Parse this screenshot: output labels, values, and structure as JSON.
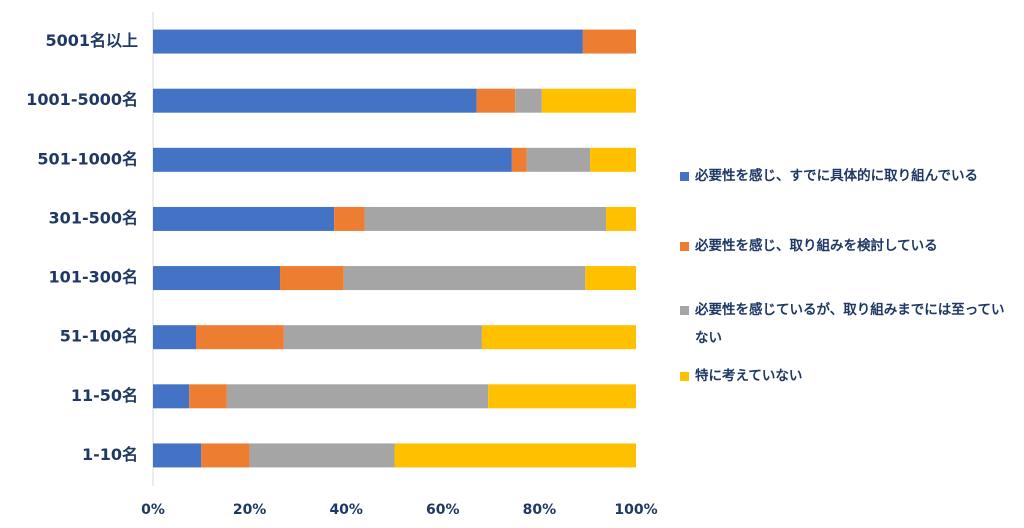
{
  "chart_data": {
    "type": "bar",
    "orientation": "horizontal",
    "stacked": true,
    "categories": [
      "5001名以上",
      "1001-5000名",
      "501-1000名",
      "301-500名",
      "101-300名",
      "51-100名",
      "11-50名",
      "1-10名"
    ],
    "series": [
      {
        "name": "必要性を感じ、すでに具体的に取り組んでいる",
        "color": "#4472c4",
        "values": [
          89,
          67,
          74.3,
          37.5,
          26.3,
          8.9,
          7.5,
          10
        ]
      },
      {
        "name": "必要性を感じ、取り組みを検討している",
        "color": "#ed7d31",
        "values": [
          11,
          8,
          3.1,
          6.3,
          13.2,
          18.2,
          7.8,
          10
        ]
      },
      {
        "name": "必要性を感じているが、取り組みまでには至っていない",
        "color": "#a5a5a5",
        "values": [
          0,
          5.5,
          13.1,
          50,
          50,
          41,
          54.1,
          30
        ]
      },
      {
        "name": "特に考えていない",
        "color": "#ffc000",
        "values": [
          0,
          19.5,
          9.5,
          6.2,
          10.5,
          31.9,
          30.6,
          50
        ]
      }
    ],
    "xlim": [
      0,
      100
    ],
    "xticks": [
      {
        "value": 0,
        "label": "0%"
      },
      {
        "value": 20,
        "label": "20%"
      },
      {
        "value": 40,
        "label": "40%"
      },
      {
        "value": 60,
        "label": "60%"
      },
      {
        "value": 80,
        "label": "80%"
      },
      {
        "value": 100,
        "label": "100%"
      }
    ],
    "grid": false,
    "legend": "right"
  }
}
